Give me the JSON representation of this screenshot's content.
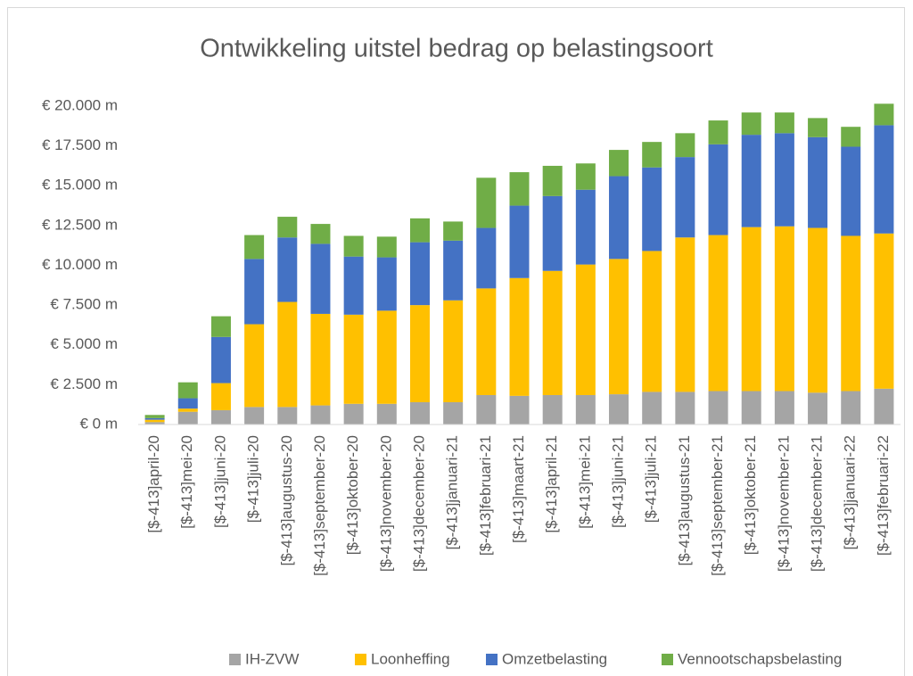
{
  "chart_data": {
    "type": "stacked_bar",
    "title": "Ontwikkeling uitstel bedrag op belastingsoort",
    "categories": [
      "[$-413]april-20",
      "[$-413]mei-20",
      "[$-413]juni-20",
      "[$-413]juli-20",
      "[$-413]augustus-20",
      "[$-413]september-20",
      "[$-413]oktober-20",
      "[$-413]november-20",
      "[$-413]december-20",
      "[$-413]januari-21",
      "[$-413]februari-21",
      "[$-413]maart-21",
      "[$-413]april-21",
      "[$-413]mei-21",
      "[$-413]juni-21",
      "[$-413]juli-21",
      "[$-413]augustus-21",
      "[$-413]september-21",
      "[$-413]oktober-21",
      "[$-413]november-21",
      "[$-413]december-21",
      "[$-413]januari-22",
      "[$-413]februari-22"
    ],
    "series": [
      {
        "name": "IH-ZVW",
        "color": "#a5a5a5",
        "values": [
          150,
          800,
          900,
          1100,
          1100,
          1200,
          1300,
          1300,
          1400,
          1400,
          1850,
          1800,
          1850,
          1850,
          1900,
          2050,
          2050,
          2100,
          2100,
          2100,
          2000,
          2100,
          2250
        ]
      },
      {
        "name": "Loonheffing",
        "color": "#ffc000",
        "values": [
          150,
          200,
          1700,
          5200,
          6600,
          5750,
          5600,
          5850,
          6100,
          6400,
          6700,
          7400,
          7800,
          8200,
          8500,
          8850,
          9700,
          9800,
          10300,
          10350,
          10350,
          9750,
          9750
        ]
      },
      {
        "name": "Omzetbelasting",
        "color": "#4472c4",
        "values": [
          100,
          650,
          2900,
          4100,
          4050,
          4400,
          3650,
          3350,
          3950,
          3750,
          3800,
          4550,
          4700,
          4700,
          5200,
          5250,
          5050,
          5700,
          5800,
          5850,
          5700,
          5600,
          6800
        ]
      },
      {
        "name": "Vennootschapsbelasting",
        "color": "#70ad47",
        "values": [
          200,
          1000,
          1300,
          1500,
          1300,
          1250,
          1300,
          1300,
          1500,
          1200,
          3150,
          2100,
          1900,
          1650,
          1650,
          1600,
          1500,
          1500,
          1400,
          1300,
          1200,
          1250,
          1350
        ]
      }
    ],
    "ylim": [
      0,
      20000
    ],
    "yticks": [
      {
        "value": 0,
        "label": "€ 0 m"
      },
      {
        "value": 2500,
        "label": "€ 2.500 m"
      },
      {
        "value": 5000,
        "label": "€ 5.000 m"
      },
      {
        "value": 7500,
        "label": "€ 7.500 m"
      },
      {
        "value": 10000,
        "label": "€ 10.000 m"
      },
      {
        "value": 12500,
        "label": "€ 12.500 m"
      },
      {
        "value": 15000,
        "label": "€ 15.000 m"
      },
      {
        "value": 17500,
        "label": "€ 17.500 m"
      },
      {
        "value": 20000,
        "label": "€ 20.000 m"
      }
    ],
    "grid": false,
    "legend": "bottom"
  }
}
